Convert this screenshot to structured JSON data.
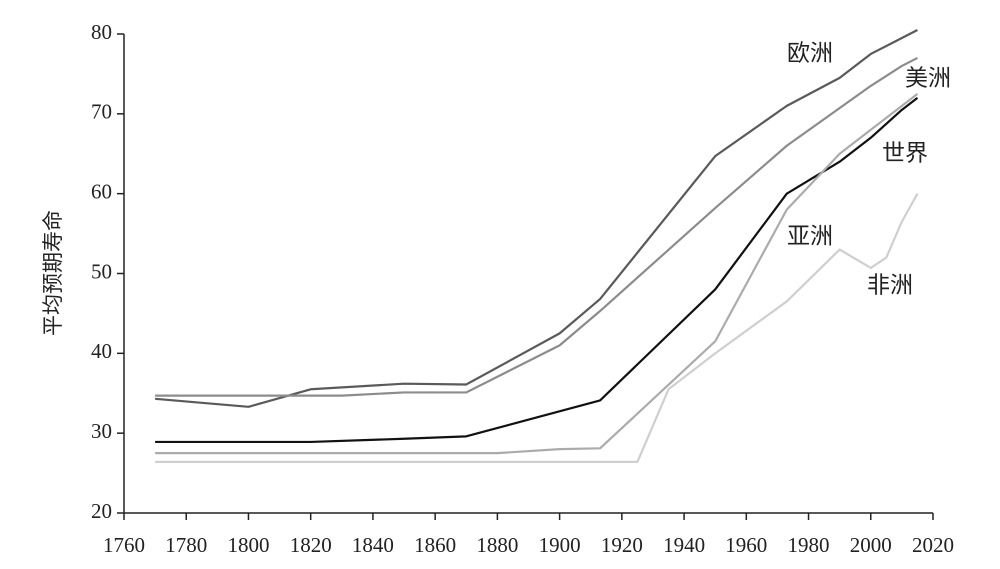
{
  "chart_data": {
    "type": "line",
    "y_label": "平均预期寿命",
    "xlim": [
      1760,
      2020
    ],
    "xticks": [
      1760,
      1780,
      1800,
      1820,
      1840,
      1860,
      1880,
      1900,
      1920,
      1940,
      1960,
      1980,
      2000,
      2020
    ],
    "ylim": [
      20,
      80
    ],
    "yticks": [
      20,
      30,
      40,
      50,
      60,
      70,
      80
    ],
    "series": [
      {
        "name": "欧洲",
        "color": "#5a5a5a",
        "x": [
          1770,
          1800,
          1820,
          1850,
          1870,
          1900,
          1913,
          1950,
          1973,
          1990,
          2000,
          2010,
          2015
        ],
        "values": [
          34.3,
          33.3,
          35.5,
          36.2,
          36.1,
          42.5,
          46.8,
          64.7,
          71,
          74.5,
          77.5,
          79.5,
          80.5
        ]
      },
      {
        "name": "美洲",
        "color": "#8c8c8c",
        "x": [
          1770,
          1830,
          1850,
          1870,
          1900,
          1913,
          1950,
          1973,
          2000,
          2010,
          2015
        ],
        "values": [
          34.7,
          34.7,
          35.1,
          35.1,
          41,
          45.3,
          58.2,
          66,
          73.5,
          76,
          77
        ]
      },
      {
        "name": "世界",
        "color": "#111111",
        "x": [
          1770,
          1820,
          1850,
          1870,
          1913,
          1950,
          1973,
          1990,
          2000,
          2010,
          2015
        ],
        "values": [
          28.9,
          28.9,
          29.3,
          29.6,
          34.1,
          48,
          60,
          64,
          67,
          70.5,
          72
        ]
      },
      {
        "name": "亚洲",
        "color": "#ababab",
        "x": [
          1770,
          1880,
          1900,
          1913,
          1950,
          1973,
          1990,
          2000,
          2010,
          2015
        ],
        "values": [
          27.5,
          27.5,
          28,
          28.1,
          41.5,
          58,
          65,
          68,
          71,
          72.5
        ]
      },
      {
        "name": "非洲",
        "color": "#cfcfcf",
        "x": [
          1770,
          1925,
          1935,
          1950,
          1973,
          1990,
          2000,
          2005,
          2010,
          2015
        ],
        "values": [
          26.4,
          26.4,
          35.5,
          40,
          46.5,
          53,
          50.7,
          52,
          56.5,
          60
        ]
      }
    ]
  }
}
